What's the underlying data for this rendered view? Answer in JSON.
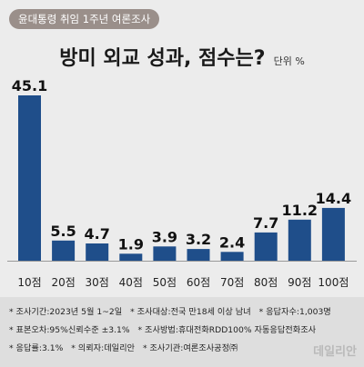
{
  "topic_badge": "윤대통령 취임 1주년 여론조사",
  "chart_data": {
    "type": "bar",
    "title": "방미 외교 성과, 점수는?",
    "unit": "단위 %",
    "categories": [
      "10점",
      "20점",
      "30점",
      "40점",
      "50점",
      "60점",
      "70점",
      "80점",
      "90점",
      "100점"
    ],
    "values": [
      45.1,
      5.5,
      4.7,
      1.9,
      3.9,
      3.2,
      2.4,
      7.7,
      11.2,
      14.4
    ],
    "value_labels": [
      "45.1",
      "5.5",
      "4.7",
      "1.9",
      "3.9",
      "3.2",
      "2.4",
      "7.7",
      "11.2",
      "14.4"
    ],
    "ylim": [
      0,
      45.1
    ],
    "grid": false,
    "bar_color": "#1f4e8a"
  },
  "notes": {
    "line1": [
      "* 조사기간:2023년 5월 1~2일",
      "* 조사대상:전국 만18세 이상 남녀",
      "* 응답자수:1,003명"
    ],
    "line2": [
      "* 표본오차:95%신뢰수준 ±3.1%",
      "* 조사방법:휴대전화RDD100% 자동응답전화조사"
    ],
    "line3": [
      "* 응답률:3.1%",
      "* 의뢰자:데일리안",
      "* 조사기관:여론조사공정㈜"
    ]
  },
  "brand": "데일리안"
}
